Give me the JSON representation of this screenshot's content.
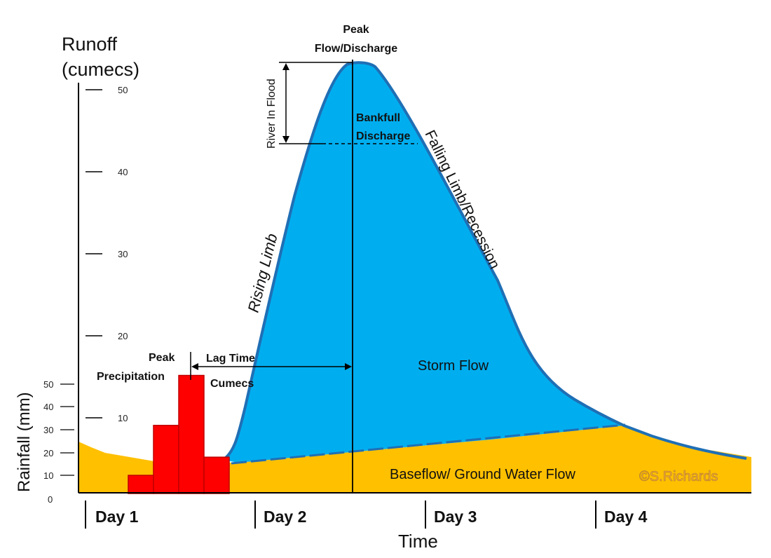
{
  "colors": {
    "storm_flow": "#00aeef",
    "storm_outline": "#1f6fb5",
    "baseflow": "#ffc000",
    "rainfall_bars": "#ff0000",
    "bar_outline": "#c00000",
    "axis": "#000000"
  },
  "labels": {
    "runoff_axis_line1": "Runoff",
    "runoff_axis_line2": "(cumecs)",
    "rainfall_axis": "Rainfall (mm)",
    "time_axis": "Time",
    "peak_flow_line1": "Peak",
    "peak_flow_line2": "Flow/Discharge",
    "river_in_flood": "River In Flood",
    "bankfull_line1": "Bankfull",
    "bankfull_line2": "Discharge",
    "falling_limb": "Falling Limb/Recession",
    "rising_limb": "Rising Limb",
    "peak_precip_line1": "Peak",
    "peak_precip_line2": "Precipitation",
    "lag_time": "Lag Time",
    "cumecs": "Cumecs",
    "storm_flow": "Storm Flow",
    "baseflow": "Baseflow/ Ground Water Flow",
    "copyright": "©S.Richards"
  },
  "runoff_ticks": [
    "50",
    "40",
    "30",
    "20",
    "10"
  ],
  "rainfall_ticks": [
    "50",
    "40",
    "30",
    "20",
    "10",
    "0"
  ],
  "days": [
    "Day 1",
    "Day 2",
    "Day 3",
    "Day 4"
  ],
  "chart_data": {
    "type": "bar",
    "rainfall_mm": [
      8,
      30,
      52,
      16
    ],
    "runoff_ylim": [
      0,
      50
    ],
    "rainfall_ylim": [
      0,
      50
    ],
    "bankfull_cumecs": 43,
    "peak_cumecs": 52
  }
}
